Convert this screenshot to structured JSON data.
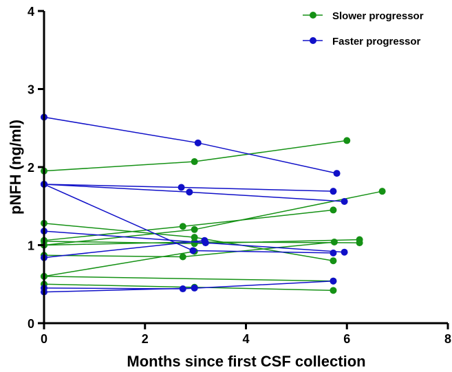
{
  "chart_data": {
    "type": "line",
    "title": "",
    "xlabel": "Months since first CSF collection",
    "ylabel": "pNFH (ng/ml)",
    "xlim": [
      0,
      8
    ],
    "ylim": [
      0,
      4
    ],
    "x_ticks": [
      "0",
      "2",
      "4",
      "6",
      "8"
    ],
    "y_ticks": [
      "0",
      "1",
      "2",
      "3",
      "4"
    ],
    "grid": false,
    "legend_position": "top-right",
    "colors": {
      "slower": "#159115",
      "faster": "#1010c8"
    },
    "groups": [
      {
        "name": "Slower progressor",
        "color": "#159115",
        "subjects": [
          {
            "x": [
              0,
              2.98,
              6.0
            ],
            "y": [
              1.95,
              2.07,
              2.34
            ]
          },
          {
            "x": [
              0,
              2.98,
              6.7
            ],
            "y": [
              1.0,
              1.2,
              1.69
            ]
          },
          {
            "x": [
              0,
              2.98,
              5.73
            ],
            "y": [
              1.28,
              1.1,
              0.8
            ]
          },
          {
            "x": [
              0,
              2.75,
              5.73
            ],
            "y": [
              1.06,
              1.24,
              1.45
            ]
          },
          {
            "x": [
              0,
              2.98,
              6.25
            ],
            "y": [
              1.05,
              1.02,
              1.07
            ]
          },
          {
            "x": [
              0,
              2.98,
              6.25
            ],
            "y": [
              1.0,
              1.04,
              1.03
            ]
          },
          {
            "x": [
              0,
              2.75,
              5.75
            ],
            "y": [
              0.87,
              0.85,
              1.04
            ]
          },
          {
            "x": [
              0,
              2.98
            ],
            "y": [
              0.6,
              0.92
            ]
          },
          {
            "x": [
              0,
              5.73
            ],
            "y": [
              0.6,
              0.54
            ]
          },
          {
            "x": [
              0,
              2.98,
              5.73
            ],
            "y": [
              0.5,
              0.46,
              0.42
            ]
          }
        ]
      },
      {
        "name": "Faster progressor",
        "color": "#1010c8",
        "subjects": [
          {
            "x": [
              0,
              3.05,
              5.8
            ],
            "y": [
              2.64,
              2.31,
              1.92
            ]
          },
          {
            "x": [
              0,
              2.72,
              5.73
            ],
            "y": [
              1.78,
              1.74,
              1.69
            ]
          },
          {
            "x": [
              0,
              2.88,
              5.95
            ],
            "y": [
              1.78,
              1.68,
              1.56
            ]
          },
          {
            "x": [
              0,
              2.95,
              5.73
            ],
            "y": [
              1.78,
              0.93,
              0.9
            ]
          },
          {
            "x": [
              0,
              3.2,
              5.95
            ],
            "y": [
              1.18,
              1.03,
              0.91
            ]
          },
          {
            "x": [
              0,
              3.18
            ],
            "y": [
              0.84,
              1.06
            ]
          },
          {
            "x": [
              0,
              2.98
            ],
            "y": [
              0.4,
              0.45
            ]
          },
          {
            "x": [
              0,
              2.75,
              5.73
            ],
            "y": [
              0.45,
              0.44,
              0.54
            ]
          }
        ]
      }
    ]
  }
}
